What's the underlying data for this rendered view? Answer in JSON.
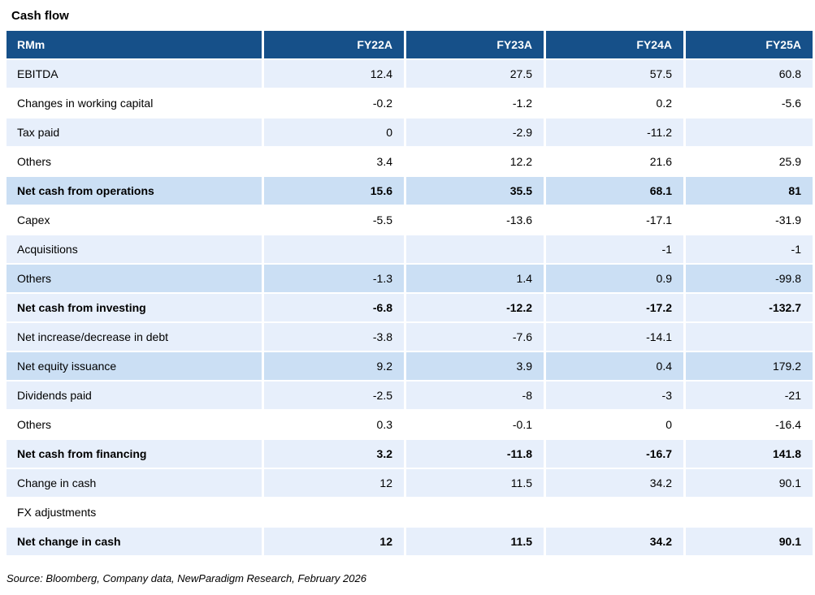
{
  "title": "Cash flow",
  "source": "Source: Bloomberg, Company data, NewParadigm Research, February 2026",
  "colors": {
    "header_bg": "#165089",
    "row_light": "#e7effb",
    "row_medium": "#cbdff4",
    "header_text": "#ffffff",
    "body_text": "#000000"
  },
  "table": {
    "columns": [
      "RMm",
      "FY22A",
      "FY23A",
      "FY24A",
      "FY25A"
    ],
    "rows": [
      {
        "label": "EBITDA",
        "values": [
          "12.4",
          "27.5",
          "57.5",
          "60.8"
        ],
        "bold": false,
        "shade": "light"
      },
      {
        "label": "Changes in working capital",
        "values": [
          "-0.2",
          "-1.2",
          "0.2",
          "-5.6"
        ],
        "bold": false,
        "shade": "white"
      },
      {
        "label": "Tax paid",
        "values": [
          "0",
          "-2.9",
          "-11.2",
          ""
        ],
        "bold": false,
        "shade": "light"
      },
      {
        "label": "Others",
        "values": [
          "3.4",
          "12.2",
          "21.6",
          "25.9"
        ],
        "bold": false,
        "shade": "white"
      },
      {
        "label": "Net cash from operations",
        "values": [
          "15.6",
          "35.5",
          "68.1",
          "81"
        ],
        "bold": true,
        "shade": "medium"
      },
      {
        "label": "Capex",
        "values": [
          "-5.5",
          "-13.6",
          "-17.1",
          "-31.9"
        ],
        "bold": false,
        "shade": "white"
      },
      {
        "label": "Acquisitions",
        "values": [
          "",
          "",
          "-1",
          "-1"
        ],
        "bold": false,
        "shade": "light"
      },
      {
        "label": "Others",
        "values": [
          "-1.3",
          "1.4",
          "0.9",
          "-99.8"
        ],
        "bold": false,
        "shade": "medium"
      },
      {
        "label": "Net cash from investing",
        "values": [
          "-6.8",
          "-12.2",
          "-17.2",
          "-132.7"
        ],
        "bold": true,
        "shade": "light"
      },
      {
        "label": "Net increase/decrease in debt",
        "values": [
          "-3.8",
          "-7.6",
          "-14.1",
          ""
        ],
        "bold": false,
        "shade": "light"
      },
      {
        "label": "Net equity issuance",
        "values": [
          "9.2",
          "3.9",
          "0.4",
          "179.2"
        ],
        "bold": false,
        "shade": "medium"
      },
      {
        "label": "Dividends paid",
        "values": [
          "-2.5",
          "-8",
          "-3",
          "-21"
        ],
        "bold": false,
        "shade": "light"
      },
      {
        "label": "Others",
        "values": [
          "0.3",
          "-0.1",
          "0",
          "-16.4"
        ],
        "bold": false,
        "shade": "white"
      },
      {
        "label": "Net cash from financing",
        "values": [
          "3.2",
          "-11.8",
          "-16.7",
          "141.8"
        ],
        "bold": true,
        "shade": "light"
      },
      {
        "label": "Change in cash",
        "values": [
          "12",
          "11.5",
          "34.2",
          "90.1"
        ],
        "bold": false,
        "shade": "light"
      },
      {
        "label": "FX adjustments",
        "values": [
          "",
          "",
          "",
          ""
        ],
        "bold": false,
        "shade": "white"
      },
      {
        "label": "Net change in cash",
        "values": [
          "12",
          "11.5",
          "34.2",
          "90.1"
        ],
        "bold": true,
        "shade": "light"
      }
    ]
  }
}
